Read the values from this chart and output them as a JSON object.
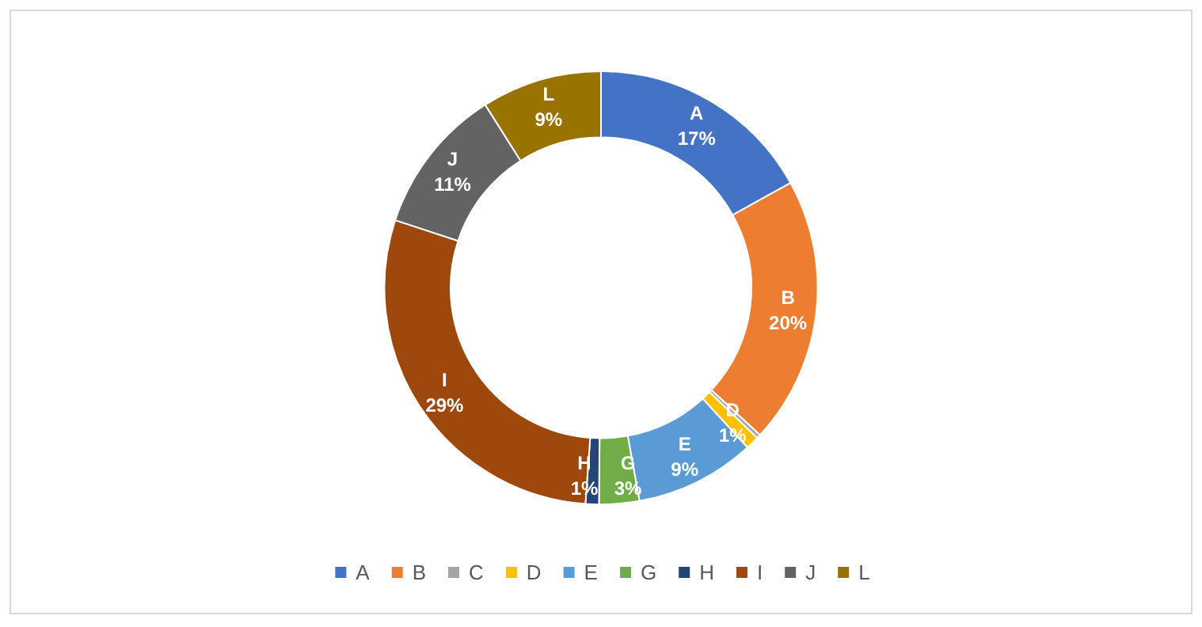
{
  "chart_data": {
    "type": "donut",
    "categories": [
      "A",
      "B",
      "C",
      "D",
      "E",
      "G",
      "H",
      "I",
      "J",
      "L"
    ],
    "values": [
      17,
      20,
      0.3,
      1,
      9,
      3,
      1,
      29,
      11,
      9
    ],
    "colors": [
      "#4472c4",
      "#ed7d31",
      "#a5a5a5",
      "#ffc000",
      "#5b9bd5",
      "#70ad47",
      "#264478",
      "#9e480e",
      "#636363",
      "#997300"
    ],
    "value_labels": [
      "17%",
      "20%",
      null,
      "1%",
      "9%",
      "3%",
      "1%",
      "29%",
      "11%",
      "9%"
    ],
    "legend": "bottom"
  }
}
